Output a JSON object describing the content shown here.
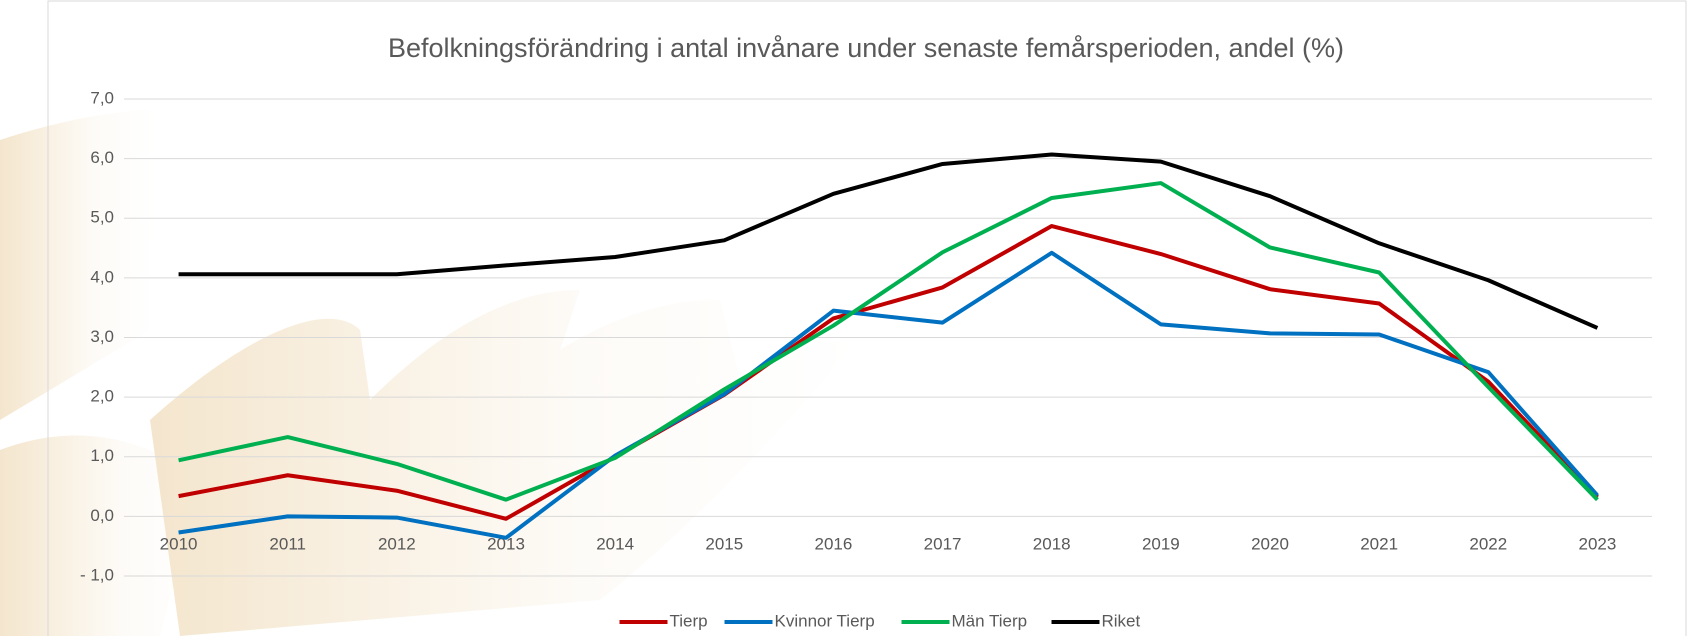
{
  "chart_data": {
    "type": "line",
    "title": "Befolkningsförändring i antal invånare under senaste femårsperioden, andel (%)",
    "categories": [
      "2010",
      "2011",
      "2012",
      "2013",
      "2014",
      "2015",
      "2016",
      "2017",
      "2018",
      "2019",
      "2020",
      "2021",
      "2022",
      "2023"
    ],
    "series": [
      {
        "name": "Tierp",
        "color": "#c00000",
        "values": [
          0.34,
          0.69,
          0.43,
          -0.04,
          1.0,
          2.04,
          3.32,
          3.84,
          4.87,
          4.4,
          3.81,
          3.57,
          2.26,
          0.32
        ]
      },
      {
        "name": "Kvinnor Tierp",
        "color": "#0070c0",
        "values": [
          -0.27,
          0.0,
          -0.02,
          -0.36,
          1.02,
          2.05,
          3.45,
          3.25,
          4.42,
          3.22,
          3.07,
          3.05,
          2.42,
          0.35
        ]
      },
      {
        "name": "Män  Tierp",
        "color": "#00b050",
        "values": [
          0.94,
          1.33,
          0.88,
          0.28,
          0.98,
          2.13,
          3.2,
          4.43,
          5.34,
          5.59,
          4.51,
          4.09,
          2.17,
          0.28
        ]
      },
      {
        "name": "Riket",
        "color": "#000000",
        "values": [
          4.06,
          4.06,
          4.06,
          4.21,
          4.35,
          4.63,
          5.41,
          5.91,
          6.07,
          5.95,
          5.37,
          4.58,
          3.96,
          3.16
        ]
      }
    ],
    "ylim": [
      -1,
      7
    ],
    "yticks": [
      {
        "value": -1,
        "label": "- 1,0"
      },
      {
        "value": 0,
        "label": "0,0"
      },
      {
        "value": 1,
        "label": "1,0"
      },
      {
        "value": 2,
        "label": "2,0"
      },
      {
        "value": 3,
        "label": "3,0"
      },
      {
        "value": 4,
        "label": "4,0"
      },
      {
        "value": 5,
        "label": "5,0"
      },
      {
        "value": 6,
        "label": "6,0"
      },
      {
        "value": 7,
        "label": "7,0"
      }
    ],
    "grid": true,
    "legend": "bottom"
  }
}
